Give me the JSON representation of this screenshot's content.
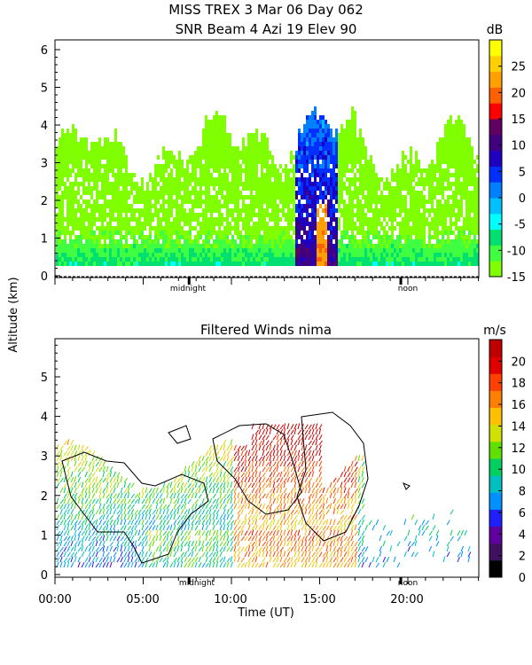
{
  "figure": {
    "title_line1": "MISS TREX   3 Mar 06 Day 062",
    "shared_ylabel": "Altitude (km)",
    "xlabel": "Time (UT)",
    "x_tick_labels": [
      "00:00",
      "05:00",
      "10:00",
      "15:00",
      "20:00"
    ],
    "marker_labels": {
      "midnight": "midnight",
      "noon": "noon"
    }
  },
  "chart_data": [
    {
      "type": "heatmap",
      "title": "SNR Beam 4 Azi  19 Elev 90",
      "xlabel": "Time (UT)",
      "ylabel": "Altitude (km)",
      "xlim": [
        0,
        24
      ],
      "ylim": [
        0,
        6.4
      ],
      "y_ticks": [
        0,
        1,
        2,
        3,
        4,
        5,
        6
      ],
      "markers": [
        {
          "label": "midnight",
          "x_hours": 7.6
        },
        {
          "label": "noon",
          "x_hours": 19.6
        }
      ],
      "colorbar": {
        "unit": "dB",
        "range": [
          -15,
          30
        ],
        "ticks": [
          -15,
          -10,
          -5,
          0,
          5,
          10,
          15,
          20,
          25
        ],
        "colors": [
          "#7fff00",
          "#40ff40",
          "#00e070",
          "#00ffff",
          "#00c0ff",
          "#0080ff",
          "#0030ff",
          "#2000c0",
          "#400080",
          "#600060",
          "#ff0000",
          "#ff6000",
          "#ffa000",
          "#ffd000",
          "#ffff00"
        ]
      }
    },
    {
      "type": "scatter",
      "title": "Filtered Winds nima",
      "xlabel": "Time (UT)",
      "ylabel": "Altitude (km)",
      "xlim": [
        0,
        24
      ],
      "ylim": [
        0,
        6
      ],
      "y_ticks": [
        0,
        1,
        2,
        3,
        4,
        5
      ],
      "markers": [
        {
          "label": "midnight",
          "x_hours": 7.6
        },
        {
          "label": "noon",
          "x_hours": 19.6
        }
      ],
      "colorbar": {
        "unit": "m/s",
        "range": [
          0,
          22
        ],
        "ticks": [
          0,
          2,
          4,
          6,
          8,
          10,
          12,
          14,
          16,
          18,
          20
        ],
        "colors": [
          "#000000",
          "#401060",
          "#6000a0",
          "#2020ff",
          "#0090ff",
          "#00c0c0",
          "#00d060",
          "#60e000",
          "#d0e000",
          "#ffc000",
          "#ff8000",
          "#ff4000",
          "#e00000",
          "#c00000"
        ]
      }
    }
  ]
}
